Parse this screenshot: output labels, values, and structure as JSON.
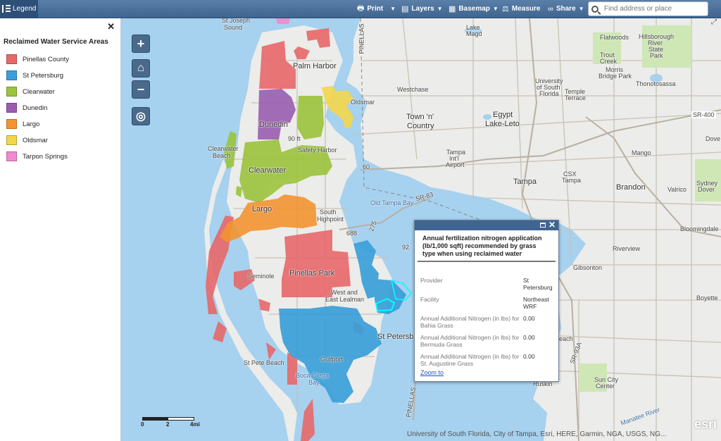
{
  "toolbar": {
    "legend_label": "Legend",
    "print_label": "Print",
    "layers_label": "Layers",
    "basemap_label": "Basemap",
    "measure_label": "Measure",
    "share_label": "Share",
    "search_placeholder": "Find address or place"
  },
  "legend": {
    "close_glyph": "✕",
    "title": "Reclaimed Water Service Areas",
    "items": [
      {
        "label": "Pinellas County",
        "color": "#e8686a"
      },
      {
        "label": "St Petersburg",
        "color": "#3a9fd8"
      },
      {
        "label": "Clearwater",
        "color": "#9cc43c"
      },
      {
        "label": "Dunedin",
        "color": "#9a5db0"
      },
      {
        "label": "Largo",
        "color": "#f39431"
      },
      {
        "label": "Oldsmar",
        "color": "#f4d64a"
      },
      {
        "label": "Tarpon Springs",
        "color": "#f08ad0"
      }
    ]
  },
  "map_controls": {
    "zoom_in": "+",
    "home": "⌂",
    "zoom_out": "−",
    "locate": "◎"
  },
  "map_labels": {
    "st_joseph": "St Joseph",
    "sound": "Sound",
    "palm_harbor": "Palm Harbor",
    "dunedin": "Dunedin",
    "clearwater": "Clearwater",
    "clearwater_beach_1": "Clearwater",
    "clearwater_beach_2": "Beach",
    "safety_harbor": "Safety Harbor",
    "largo": "Largo",
    "south_highpoint_1": "South",
    "south_highpoint_2": "Highpoint",
    "seminole": "Seminole",
    "pinellas_park": "Pinellas Park",
    "west_east_lealman_1": "West and",
    "west_east_lealman_2": "East Lealman",
    "st_petersburg": "St Petersburg",
    "st_pete_beach": "St Pete Beach",
    "gulfport": "Gulfport",
    "boca_ciega_1": "Boca Ciega",
    "boca_ciega_2": "Bay",
    "oldsmar": "Oldsmar",
    "westchase": "Westchase",
    "town_country_1": "Town 'n'",
    "town_country_2": "Country",
    "egypt_lake_1": "Egypt",
    "egypt_lake_2": "Lake-Leto",
    "tampa_airport_1": "Tampa",
    "tampa_airport_2": "Int'l",
    "tampa_airport_3": "Airport",
    "tampa": "Tampa",
    "old_tampa_bay": "Old Tampa Bay",
    "usf_1": "University",
    "usf_2": "of South",
    "usf_3": "Florida",
    "temple_terrace_1": "Temple",
    "temple_terrace_2": "Terrace",
    "flatwoods": "Flatwoods",
    "hillsborough_1": "Hillsborough",
    "hillsborough_2": "River",
    "hillsborough_3": "State",
    "hillsborough_4": "Park",
    "trout_creek_1": "Trout",
    "trout_creek_2": "Creek",
    "morris_bridge_1": "Morris",
    "morris_bridge_2": "Bridge Park",
    "thonotosassa": "Thonotosassa",
    "mango": "Mango",
    "brandon": "Brandon",
    "valrico": "Valrico",
    "sydney_1": "Sydney",
    "sydney_2": "Dover",
    "bloomingdale": "Bloomingdale",
    "riverview": "Riverview",
    "gibsonton": "Gibsonton",
    "boyette": "Boyette",
    "beach": "each",
    "ruskin": "Ruskin",
    "sun_city_1": "Sun City",
    "sun_city_2": "Center",
    "manatee_river": "Manatee River",
    "csx_1": "CSX",
    "csx_2": "Tampa",
    "sr_400": "SR-400",
    "sr_83": "SR-83",
    "sr_93a": "SR-93A",
    "pinellas_top": "PINELLAS",
    "pinellas_bottom": "PINELLAS",
    "route_60": "60",
    "route_688": "688",
    "route_275": "275",
    "route_92": "92",
    "route_90ft": "90 ft",
    "dover_right": "Dove",
    "lake_1": "Lake",
    "lake_2": "Magd",
    "tarpon_lake": "Lake"
  },
  "popup": {
    "title": "Annual fertilization nitrogen application (lb/1,000 sqft) recommended by grass type when using reclaimed water",
    "rows": [
      {
        "key": "Provider",
        "value": "St Petersburg"
      },
      {
        "key": "Facility",
        "value": "Northeast WRF"
      },
      {
        "key": "Annual Additional Nitrogen (in lbs) for Bahia Grass",
        "value": "0.00"
      },
      {
        "key": "Annual Additional Nitrogen (in lbs) for Bermuda Grass",
        "value": "0.00"
      },
      {
        "key": "Annual Additional Nitrogen (in lbs) for St. Augustine Grass",
        "value": "0.00"
      }
    ],
    "zoom_to": "Zoom to"
  },
  "scale": {
    "t0": "0",
    "t1": "2",
    "t2": "4mi"
  },
  "attribution": "University of South Florida, City of Tampa, Esri, HERE, Garmin, NGA, USGS, NG...",
  "esri_logo": "esri",
  "colors": {
    "water": "#a6d1ef",
    "land": "#ececea",
    "toolbar": "#3f6590",
    "pinellas": "#e8686a",
    "stpete": "#3a9fd8",
    "clearwater": "#9cc43c",
    "dunedin": "#9a5db0",
    "largo": "#f39431",
    "oldsmar": "#f4d64a",
    "tarpon": "#f08ad0",
    "highlight": "#00ffff"
  }
}
